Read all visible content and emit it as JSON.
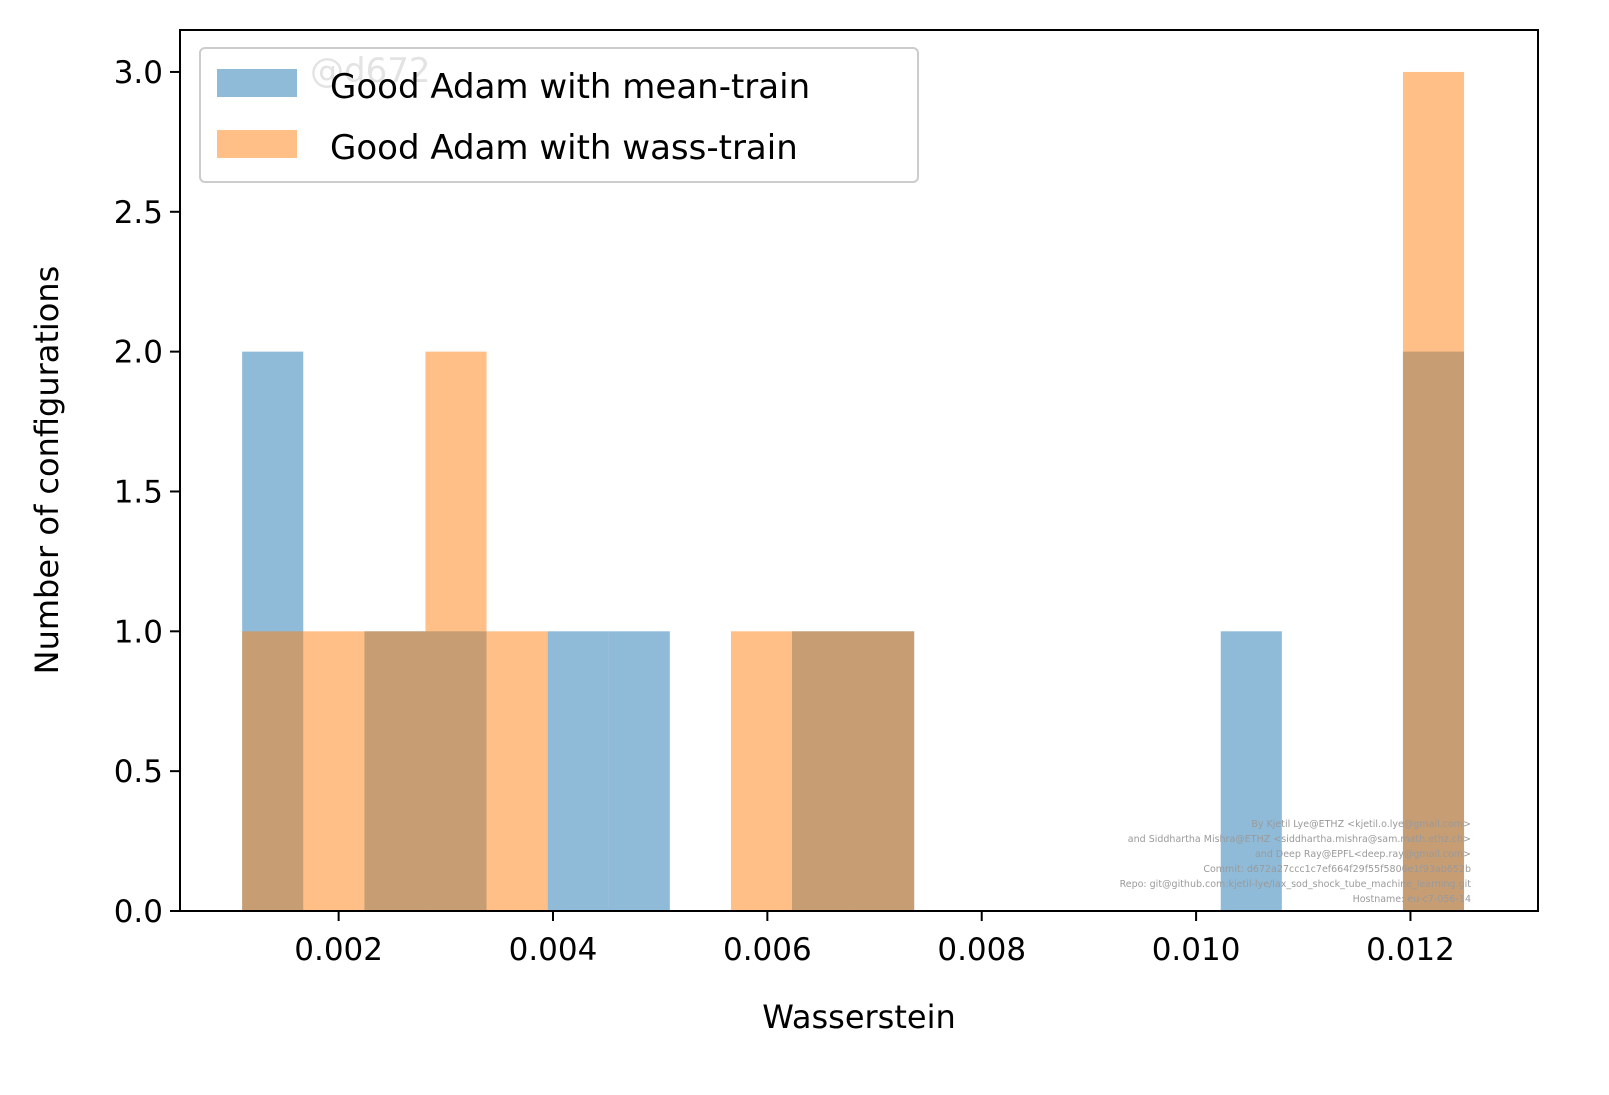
{
  "chart_data": {
    "type": "bar",
    "xlabel": "Wasserstein",
    "ylabel": "Number of configurations",
    "xlim": [
      0.00052,
      0.01319
    ],
    "ylim": [
      0,
      3.15
    ],
    "xticks": [
      0.002,
      0.004,
      0.006,
      0.008,
      0.01,
      0.012
    ],
    "xtick_labels": [
      "0.002",
      "0.004",
      "0.006",
      "0.008",
      "0.010",
      "0.012"
    ],
    "yticks": [
      0.0,
      0.5,
      1.0,
      1.5,
      2.0,
      2.5,
      3.0
    ],
    "ytick_labels": [
      "0.0",
      "0.5",
      "1.0",
      "1.5",
      "2.0",
      "2.5",
      "3.0"
    ],
    "grid": false,
    "legend_position": "top-left",
    "series": [
      {
        "name": "Good Adam with mean-train",
        "color": "#1f77b4",
        "alpha": 0.5,
        "bins": [
          {
            "x0": 0.0011,
            "x1": 0.00167,
            "count": 2
          },
          {
            "x0": 0.00224,
            "x1": 0.00281,
            "count": 1
          },
          {
            "x0": 0.00281,
            "x1": 0.00338,
            "count": 1
          },
          {
            "x0": 0.00395,
            "x1": 0.00452,
            "count": 1
          },
          {
            "x0": 0.00452,
            "x1": 0.00509,
            "count": 1
          },
          {
            "x0": 0.00623,
            "x1": 0.0068,
            "count": 1
          },
          {
            "x0": 0.0068,
            "x1": 0.00737,
            "count": 1
          },
          {
            "x0": 0.01023,
            "x1": 0.0108,
            "count": 1
          },
          {
            "x0": 0.01193,
            "x1": 0.0125,
            "count": 2
          }
        ]
      },
      {
        "name": "Good Adam with wass-train",
        "color": "#ff7f0e",
        "alpha": 0.5,
        "bins": [
          {
            "x0": 0.0011,
            "x1": 0.00167,
            "count": 1
          },
          {
            "x0": 0.00167,
            "x1": 0.00224,
            "count": 1
          },
          {
            "x0": 0.00224,
            "x1": 0.00281,
            "count": 1
          },
          {
            "x0": 0.00281,
            "x1": 0.00338,
            "count": 2
          },
          {
            "x0": 0.00338,
            "x1": 0.00395,
            "count": 1
          },
          {
            "x0": 0.00566,
            "x1": 0.00623,
            "count": 1
          },
          {
            "x0": 0.00623,
            "x1": 0.0068,
            "count": 1
          },
          {
            "x0": 0.0068,
            "x1": 0.00737,
            "count": 1
          },
          {
            "x0": 0.01193,
            "x1": 0.0125,
            "count": 3
          }
        ]
      }
    ]
  },
  "watermark": "@d672",
  "credits": [
    "By Kjetil Lye@ETHZ <kjetil.o.lye@gmail.com>",
    "and Siddhartha Mishra@ETHZ <siddhartha.mishra@sam.math.ethz.ch>",
    "and Deep Ray@EPFL<deep.ray@gmail.com>",
    "Commit: d672a27ccc1c7ef664f29f55f5806e1f93ab652b",
    "Repo: git@github.com:kjetil-lye/lax_sod_shock_tube_machine_learning.git",
    "Hostname: eu-c7-056-14"
  ]
}
